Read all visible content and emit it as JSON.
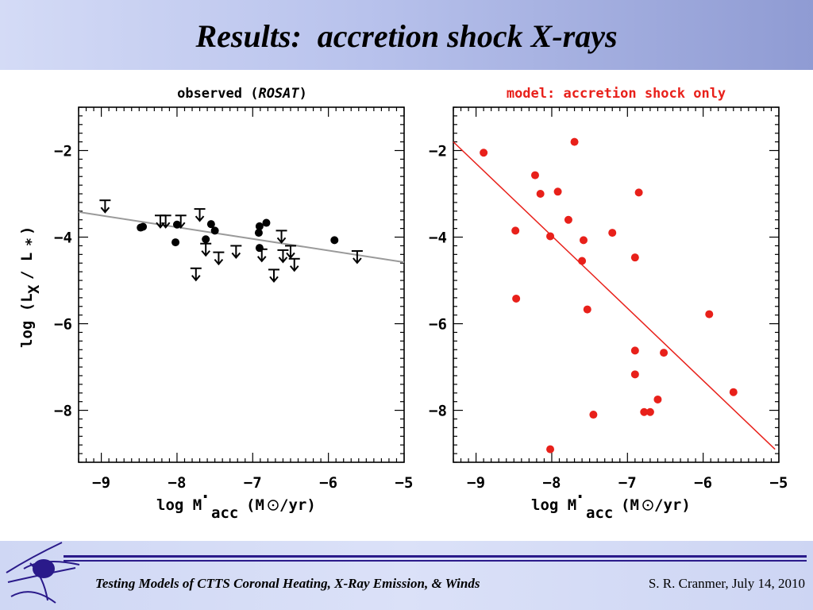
{
  "slide": {
    "title": "Results:  accretion shock X-rays",
    "footer_left": "Testing Models of CTTS Coronal Heating, X-Ray Emission, & Winds",
    "footer_right": "S. R. Cranmer, July 14, 2010"
  },
  "chart_data": [
    {
      "type": "scatter",
      "title_prefix": "observed (",
      "title_italic": "ROSAT",
      "title_suffix": ")",
      "title_color": "#000000",
      "xlabel": "log Ṁacc (M⊙/yr)",
      "ylabel": "log (LX / L*)",
      "xlim": [
        -9.3,
        -5.0
      ],
      "ylim": [
        -9.2,
        -1.0
      ],
      "x_ticks": [
        -9,
        -8,
        -7,
        -6,
        -5
      ],
      "x_tick_labels": [
        "−9",
        "−8",
        "−7",
        "−6",
        "−5"
      ],
      "y_ticks": [
        -2,
        -4,
        -6,
        -8
      ],
      "y_tick_labels": [
        "−2",
        "−4",
        "−6",
        "−8"
      ],
      "color": "#000000",
      "fit_line": {
        "color": "#9a9a9a",
        "x": [
          -9.3,
          -5.0
        ],
        "y": [
          -3.42,
          -4.58
        ]
      },
      "series": [
        {
          "kind": "detections",
          "x": [
            -8.48,
            -8.45,
            -8.02,
            -8.0,
            -7.62,
            -7.55,
            -7.5,
            -6.92,
            -6.91,
            -6.91,
            -6.82,
            -5.92
          ],
          "y": [
            -3.78,
            -3.76,
            -4.12,
            -3.71,
            -4.05,
            -3.7,
            -3.85,
            -3.9,
            -3.75,
            -4.25,
            -3.67,
            -4.07
          ]
        },
        {
          "kind": "upper_limits",
          "x": [
            -8.95,
            -8.22,
            -8.15,
            -7.95,
            -7.75,
            -7.7,
            -7.62,
            -7.45,
            -7.22,
            -6.88,
            -6.72,
            -6.62,
            -6.6,
            -6.5,
            -6.45,
            -5.62
          ],
          "y": [
            -3.15,
            -3.5,
            -3.5,
            -3.5,
            -4.72,
            -3.35,
            -4.15,
            -4.35,
            -4.2,
            -4.28,
            -4.75,
            -3.85,
            -4.3,
            -4.2,
            -4.5,
            -4.32
          ]
        }
      ]
    },
    {
      "type": "scatter",
      "title_prefix": "model: accretion shock only",
      "title_italic": "",
      "title_suffix": "",
      "title_color": "#e8201a",
      "xlabel": "log Ṁacc (M⊙/yr)",
      "ylabel": "",
      "xlim": [
        -9.3,
        -5.0
      ],
      "ylim": [
        -9.2,
        -1.0
      ],
      "x_ticks": [
        -9,
        -8,
        -7,
        -6,
        -5
      ],
      "x_tick_labels": [
        "−9",
        "−8",
        "−7",
        "−6",
        "−5"
      ],
      "y_ticks": [
        -2,
        -4,
        -6,
        -8
      ],
      "y_tick_labels": [
        "−2",
        "−4",
        "−6",
        "−8"
      ],
      "color": "#e8201a",
      "fit_line": {
        "color": "#e8201a",
        "x": [
          -9.3,
          -5.05
        ],
        "y": [
          -1.8,
          -8.9
        ]
      },
      "series": [
        {
          "kind": "points",
          "x": [
            -8.9,
            -7.7,
            -8.22,
            -8.15,
            -7.92,
            -7.78,
            -6.85,
            -8.48,
            -8.02,
            -7.58,
            -7.2,
            -7.6,
            -6.9,
            -8.47,
            -7.53,
            -5.92,
            -6.9,
            -6.52,
            -6.9,
            -5.6,
            -6.6,
            -6.78,
            -6.7,
            -7.45,
            -8.02
          ],
          "y": [
            -2.05,
            -1.8,
            -2.57,
            -3.0,
            -2.95,
            -3.6,
            -2.97,
            -3.85,
            -3.98,
            -4.07,
            -3.9,
            -4.55,
            -4.47,
            -5.42,
            -5.67,
            -5.78,
            -6.62,
            -6.67,
            -7.17,
            -7.58,
            -7.75,
            -8.04,
            -8.04,
            -8.1,
            -8.9
          ]
        }
      ]
    }
  ]
}
